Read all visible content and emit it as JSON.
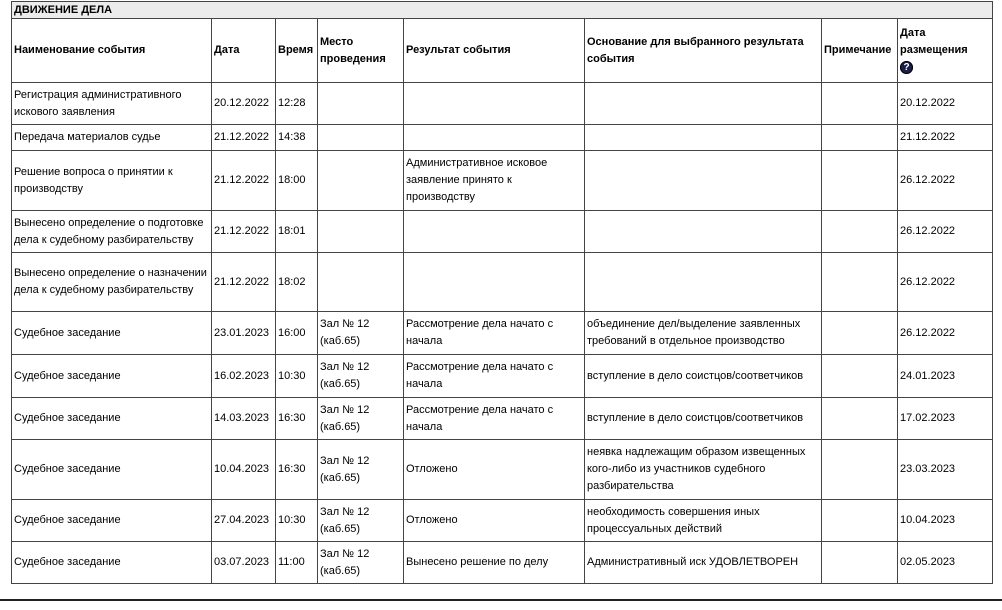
{
  "section_title": "ДВИЖЕНИЕ ДЕЛА",
  "columns": [
    "Наименование события",
    "Дата",
    "Время",
    "Место проведения",
    "Результат события",
    "Основание для выбранного результата события",
    "Примечание",
    "Дата размещения"
  ],
  "help_icon": "question-circle-icon",
  "rows": [
    {
      "event": "Регистрация административного искового заявления",
      "date": "20.12.2022",
      "time": "12:28",
      "place": "",
      "result": "",
      "basis": "",
      "note": "",
      "posted": "20.12.2022"
    },
    {
      "event": "Передача материалов судье",
      "date": "21.12.2022",
      "time": "14:38",
      "place": "",
      "result": "",
      "basis": "",
      "note": "",
      "posted": "21.12.2022"
    },
    {
      "event": "Решение вопроса о принятии к производству",
      "date": "21.12.2022",
      "time": "18:00",
      "place": "",
      "result": "Административное исковое заявление принято к производству",
      "basis": "",
      "note": "",
      "posted": "26.12.2022"
    },
    {
      "event": "Вынесено определение о подготовке дела к судебному разбирательству",
      "date": "21.12.2022",
      "time": "18:01",
      "place": "",
      "result": "",
      "basis": "",
      "note": "",
      "posted": "26.12.2022"
    },
    {
      "event": "Вынесено определение о назначении дела к судебному разбирательству",
      "date": "21.12.2022",
      "time": "18:02",
      "place": "",
      "result": "",
      "basis": "",
      "note": "",
      "posted": "26.12.2022"
    },
    {
      "event": "Судебное заседание",
      "date": "23.01.2023",
      "time": "16:00",
      "place": "Зал № 12 (каб.65)",
      "result": "Рассмотрение дела начато с начала",
      "basis": "объединение дел/выделение заявленных требований в отдельное производство",
      "note": "",
      "posted": "26.12.2022"
    },
    {
      "event": "Судебное заседание",
      "date": "16.02.2023",
      "time": "10:30",
      "place": "Зал № 12 (каб.65)",
      "result": "Рассмотрение дела начато с начала",
      "basis": "вступление в дело соистцов/соответчиков",
      "note": "",
      "posted": "24.01.2023"
    },
    {
      "event": "Судебное заседание",
      "date": "14.03.2023",
      "time": "16:30",
      "place": "Зал № 12 (каб.65)",
      "result": "Рассмотрение дела начато с начала",
      "basis": "вступление в дело соистцов/соответчиков",
      "note": "",
      "posted": "17.02.2023"
    },
    {
      "event": "Судебное заседание",
      "date": "10.04.2023",
      "time": "16:30",
      "place": "Зал № 12 (каб.65)",
      "result": "Отложено",
      "basis": "неявка надлежащим образом извещенных кого-либо из участников судебного разбирательства",
      "note": "",
      "posted": "23.03.2023"
    },
    {
      "event": "Судебное заседание",
      "date": "27.04.2023",
      "time": "10:30",
      "place": "Зал № 12 (каб.65)",
      "result": "Отложено",
      "basis": "необходимость совершения иных процессуальных действий",
      "note": "",
      "posted": "10.04.2023"
    },
    {
      "event": "Судебное заседание",
      "date": "03.07.2023",
      "time": "11:00",
      "place": "Зал № 12 (каб.65)",
      "result": "Вынесено решение по делу",
      "basis": "Административный иск УДОВЛЕТВОРЕН",
      "note": "",
      "posted": "02.05.2023"
    }
  ]
}
